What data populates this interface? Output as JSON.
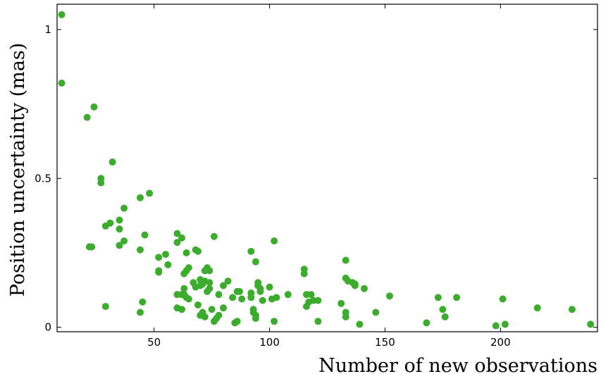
{
  "chart_data": {
    "type": "scatter",
    "title": "",
    "xlabel": "Number of new observations",
    "ylabel": "Position uncertainty (mas)",
    "xlim": [
      8,
      242
    ],
    "ylim": [
      -0.015,
      1.085
    ],
    "xticks": [
      50,
      100,
      150,
      200
    ],
    "xtick_labels": [
      "50",
      "100",
      "150",
      "200"
    ],
    "yticks": [
      0,
      0.5,
      1
    ],
    "ytick_labels": [
      "0",
      "0.5",
      "1"
    ],
    "grid": false,
    "legend": "none",
    "marker_color": "#3cac2c",
    "series": [
      {
        "x": [
          10,
          10,
          21,
          24,
          22,
          23,
          27,
          27,
          29,
          31,
          32,
          35,
          35,
          35,
          37,
          37,
          29,
          44,
          44,
          46,
          45,
          48,
          44,
          52,
          52,
          52,
          55,
          56,
          60,
          60,
          62,
          64,
          63,
          64,
          65,
          68,
          69,
          67,
          68,
          70,
          72,
          73,
          74,
          72,
          70,
          74,
          74,
          71,
          73,
          76,
          78,
          80,
          82,
          84,
          86,
          87,
          88,
          60,
          60,
          62,
          62,
          64,
          65,
          69,
          70,
          71,
          72,
          75,
          76,
          77,
          78,
          80,
          85,
          86,
          92,
          92,
          94,
          95,
          95,
          96,
          96,
          97,
          100,
          101,
          102,
          103,
          102,
          108,
          115,
          115,
          116,
          116,
          117,
          118,
          119,
          121,
          121,
          131,
          133,
          133,
          134,
          136,
          137,
          137,
          133,
          133,
          141,
          146,
          139,
          152,
          168,
          173,
          175,
          176,
          181,
          198,
          201,
          202,
          216,
          231,
          239,
          92,
          93,
          93,
          94,
          94,
          63,
          63
        ],
        "y": [
          1.05,
          0.82,
          0.705,
          0.74,
          0.27,
          0.27,
          0.5,
          0.485,
          0.34,
          0.35,
          0.555,
          0.36,
          0.33,
          0.275,
          0.4,
          0.29,
          0.07,
          0.435,
          0.26,
          0.31,
          0.085,
          0.45,
          0.05,
          0.235,
          0.185,
          0.19,
          0.245,
          0.21,
          0.285,
          0.315,
          0.3,
          0.25,
          0.18,
          0.19,
          0.2,
          0.26,
          0.255,
          0.15,
          0.135,
          0.14,
          0.19,
          0.2,
          0.19,
          0.155,
          0.16,
          0.13,
          0.15,
          0.145,
          0.12,
          0.305,
          0.11,
          0.14,
          0.155,
          0.1,
          0.12,
          0.12,
          0.095,
          0.11,
          0.065,
          0.11,
          0.06,
          0.1,
          0.095,
          0.075,
          0.04,
          0.05,
          0.035,
          0.06,
          0.02,
          0.03,
          0.04,
          0.065,
          0.015,
          0.02,
          0.255,
          0.115,
          0.22,
          0.14,
          0.15,
          0.12,
          0.13,
          0.09,
          0.135,
          0.095,
          0.29,
          0.1,
          0.02,
          0.11,
          0.18,
          0.195,
          0.11,
          0.07,
          0.085,
          0.11,
          0.09,
          0.09,
          0.02,
          0.08,
          0.225,
          0.165,
          0.155,
          0.15,
          0.145,
          0.14,
          0.05,
          0.035,
          0.13,
          0.05,
          0.01,
          0.105,
          0.015,
          0.1,
          0.06,
          0.035,
          0.1,
          0.005,
          0.095,
          0.01,
          0.065,
          0.06,
          0.01,
          0.1,
          0.05,
          0.06,
          0.04,
          0.03,
          0.13,
          0.11
        ]
      }
    ]
  }
}
